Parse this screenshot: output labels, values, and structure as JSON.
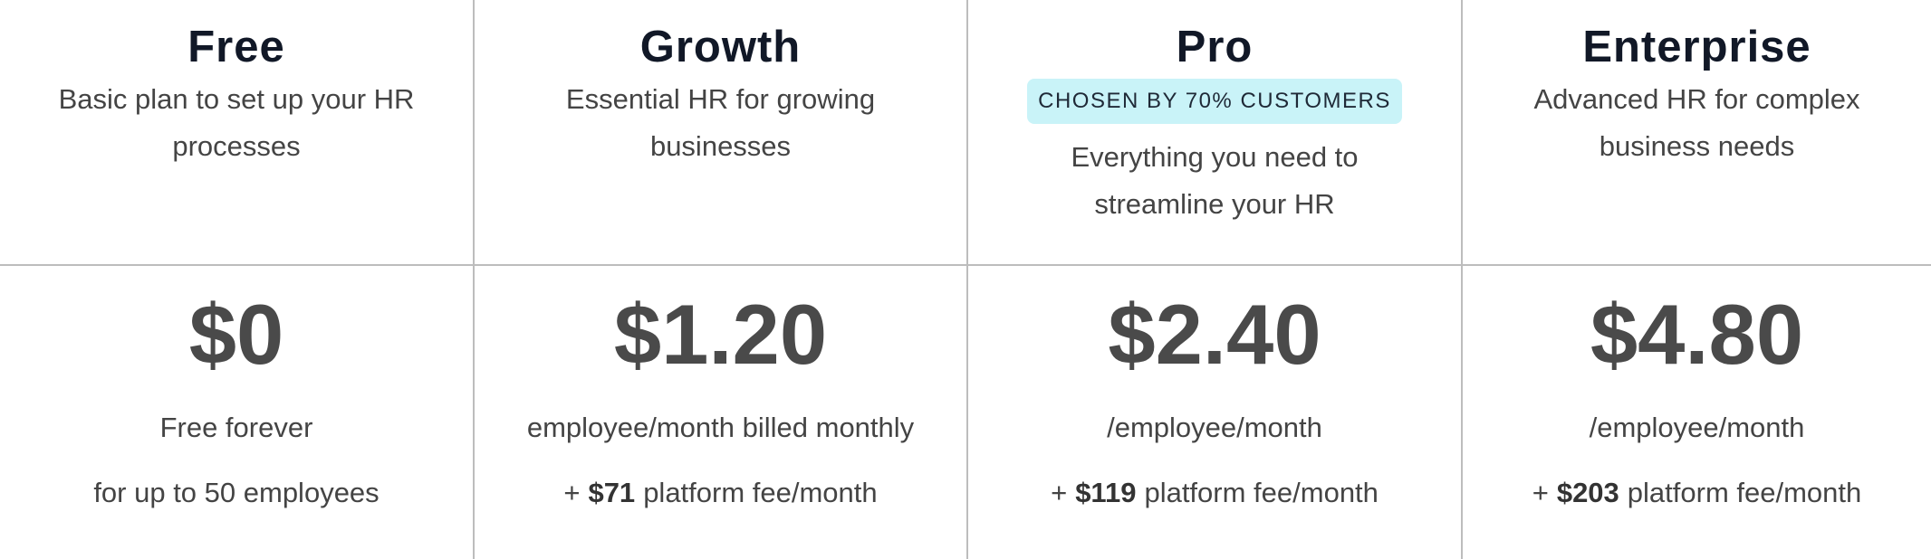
{
  "plans": [
    {
      "name": "Free",
      "description": "Basic plan to set up your HR processes",
      "price": "$0",
      "billing": "Free forever",
      "note": "for up to 50 employees"
    },
    {
      "name": "Growth",
      "description": "Essential HR for growing businesses",
      "price": "$1.20",
      "billing": "employee/month billed monthly",
      "fee_prefix": "+",
      "fee_amount": "$71",
      "fee_suffix": "platform fee/month"
    },
    {
      "name": "Pro",
      "badge": "CHOSEN BY 70% CUSTOMERS",
      "description": "Everything you need to streamline your HR",
      "price": "$2.40",
      "billing": "/employee/month",
      "fee_prefix": "+",
      "fee_amount": "$119",
      "fee_suffix": "platform fee/month"
    },
    {
      "name": "Enterprise",
      "description": "Advanced HR for complex business needs",
      "price": "$4.80",
      "billing": "/employee/month",
      "fee_prefix": "+",
      "fee_amount": "$203",
      "fee_suffix": "platform fee/month"
    }
  ]
}
